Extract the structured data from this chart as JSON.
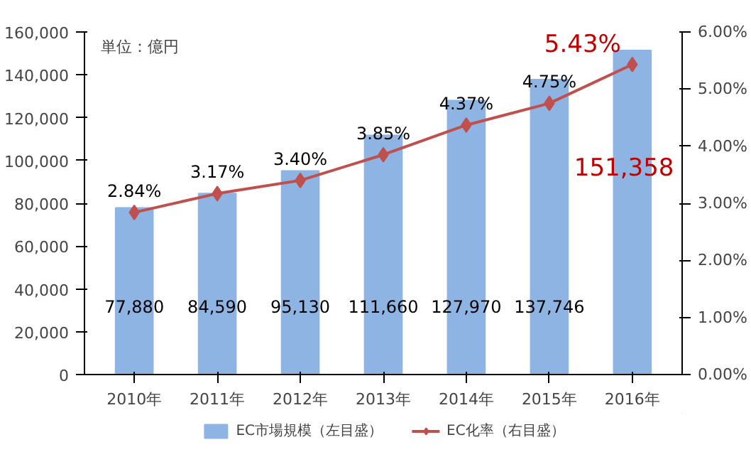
{
  "chart_data": {
    "type": "bar",
    "categories": [
      "2010年",
      "2011年",
      "2012年",
      "2013年",
      "2014年",
      "2015年",
      "2016年"
    ],
    "series": [
      {
        "name": "EC市場規模（左目盛）",
        "color": "#8db4e2",
        "values": [
          77880,
          84590,
          95130,
          111660,
          127970,
          137746,
          151358
        ],
        "value_labels": [
          "77,880",
          "84,590",
          "95,130",
          "111,660",
          "127,970",
          "137,746",
          "151,358"
        ]
      },
      {
        "name": "EC化率（右目盛）",
        "type": "line",
        "axis": "y2",
        "color": "#c0504d",
        "marker": "diamond",
        "values": [
          2.84,
          3.17,
          3.4,
          3.85,
          4.37,
          4.75,
          5.43
        ],
        "value_labels": [
          "2.84%",
          "3.17%",
          "3.40%",
          "3.85%",
          "4.37%",
          "4.75%",
          "5.43%"
        ]
      }
    ],
    "ylim": [
      0,
      160000
    ],
    "yticks": [
      0,
      {
        "value": 20000,
        "label": "20,000"
      },
      {
        "value": 40000,
        "label": "40,000"
      },
      {
        "value": 60000,
        "label": "60,000"
      },
      {
        "value": 80000,
        "label": "80,000"
      },
      {
        "value": 100000,
        "label": "100,000"
      },
      {
        "value": 120000,
        "label": "120,000"
      },
      {
        "value": 140000,
        "label": "140,000"
      },
      {
        "value": 160000,
        "label": "160,000"
      }
    ],
    "y2lim": [
      0,
      6
    ],
    "y2ticks": [
      {
        "value": 0,
        "label": "0.00%"
      },
      {
        "value": 1,
        "label": "1.00%"
      },
      {
        "value": 2,
        "label": "2.00%"
      },
      {
        "value": 3,
        "label": "3.00%"
      },
      {
        "value": 4,
        "label": "4.00%"
      },
      {
        "value": 5,
        "label": "5.00%"
      },
      {
        "value": 6,
        "label": "6.00%"
      }
    ],
    "annotations": [
      "単位：億円"
    ],
    "legend": "bottom",
    "grid": false
  }
}
